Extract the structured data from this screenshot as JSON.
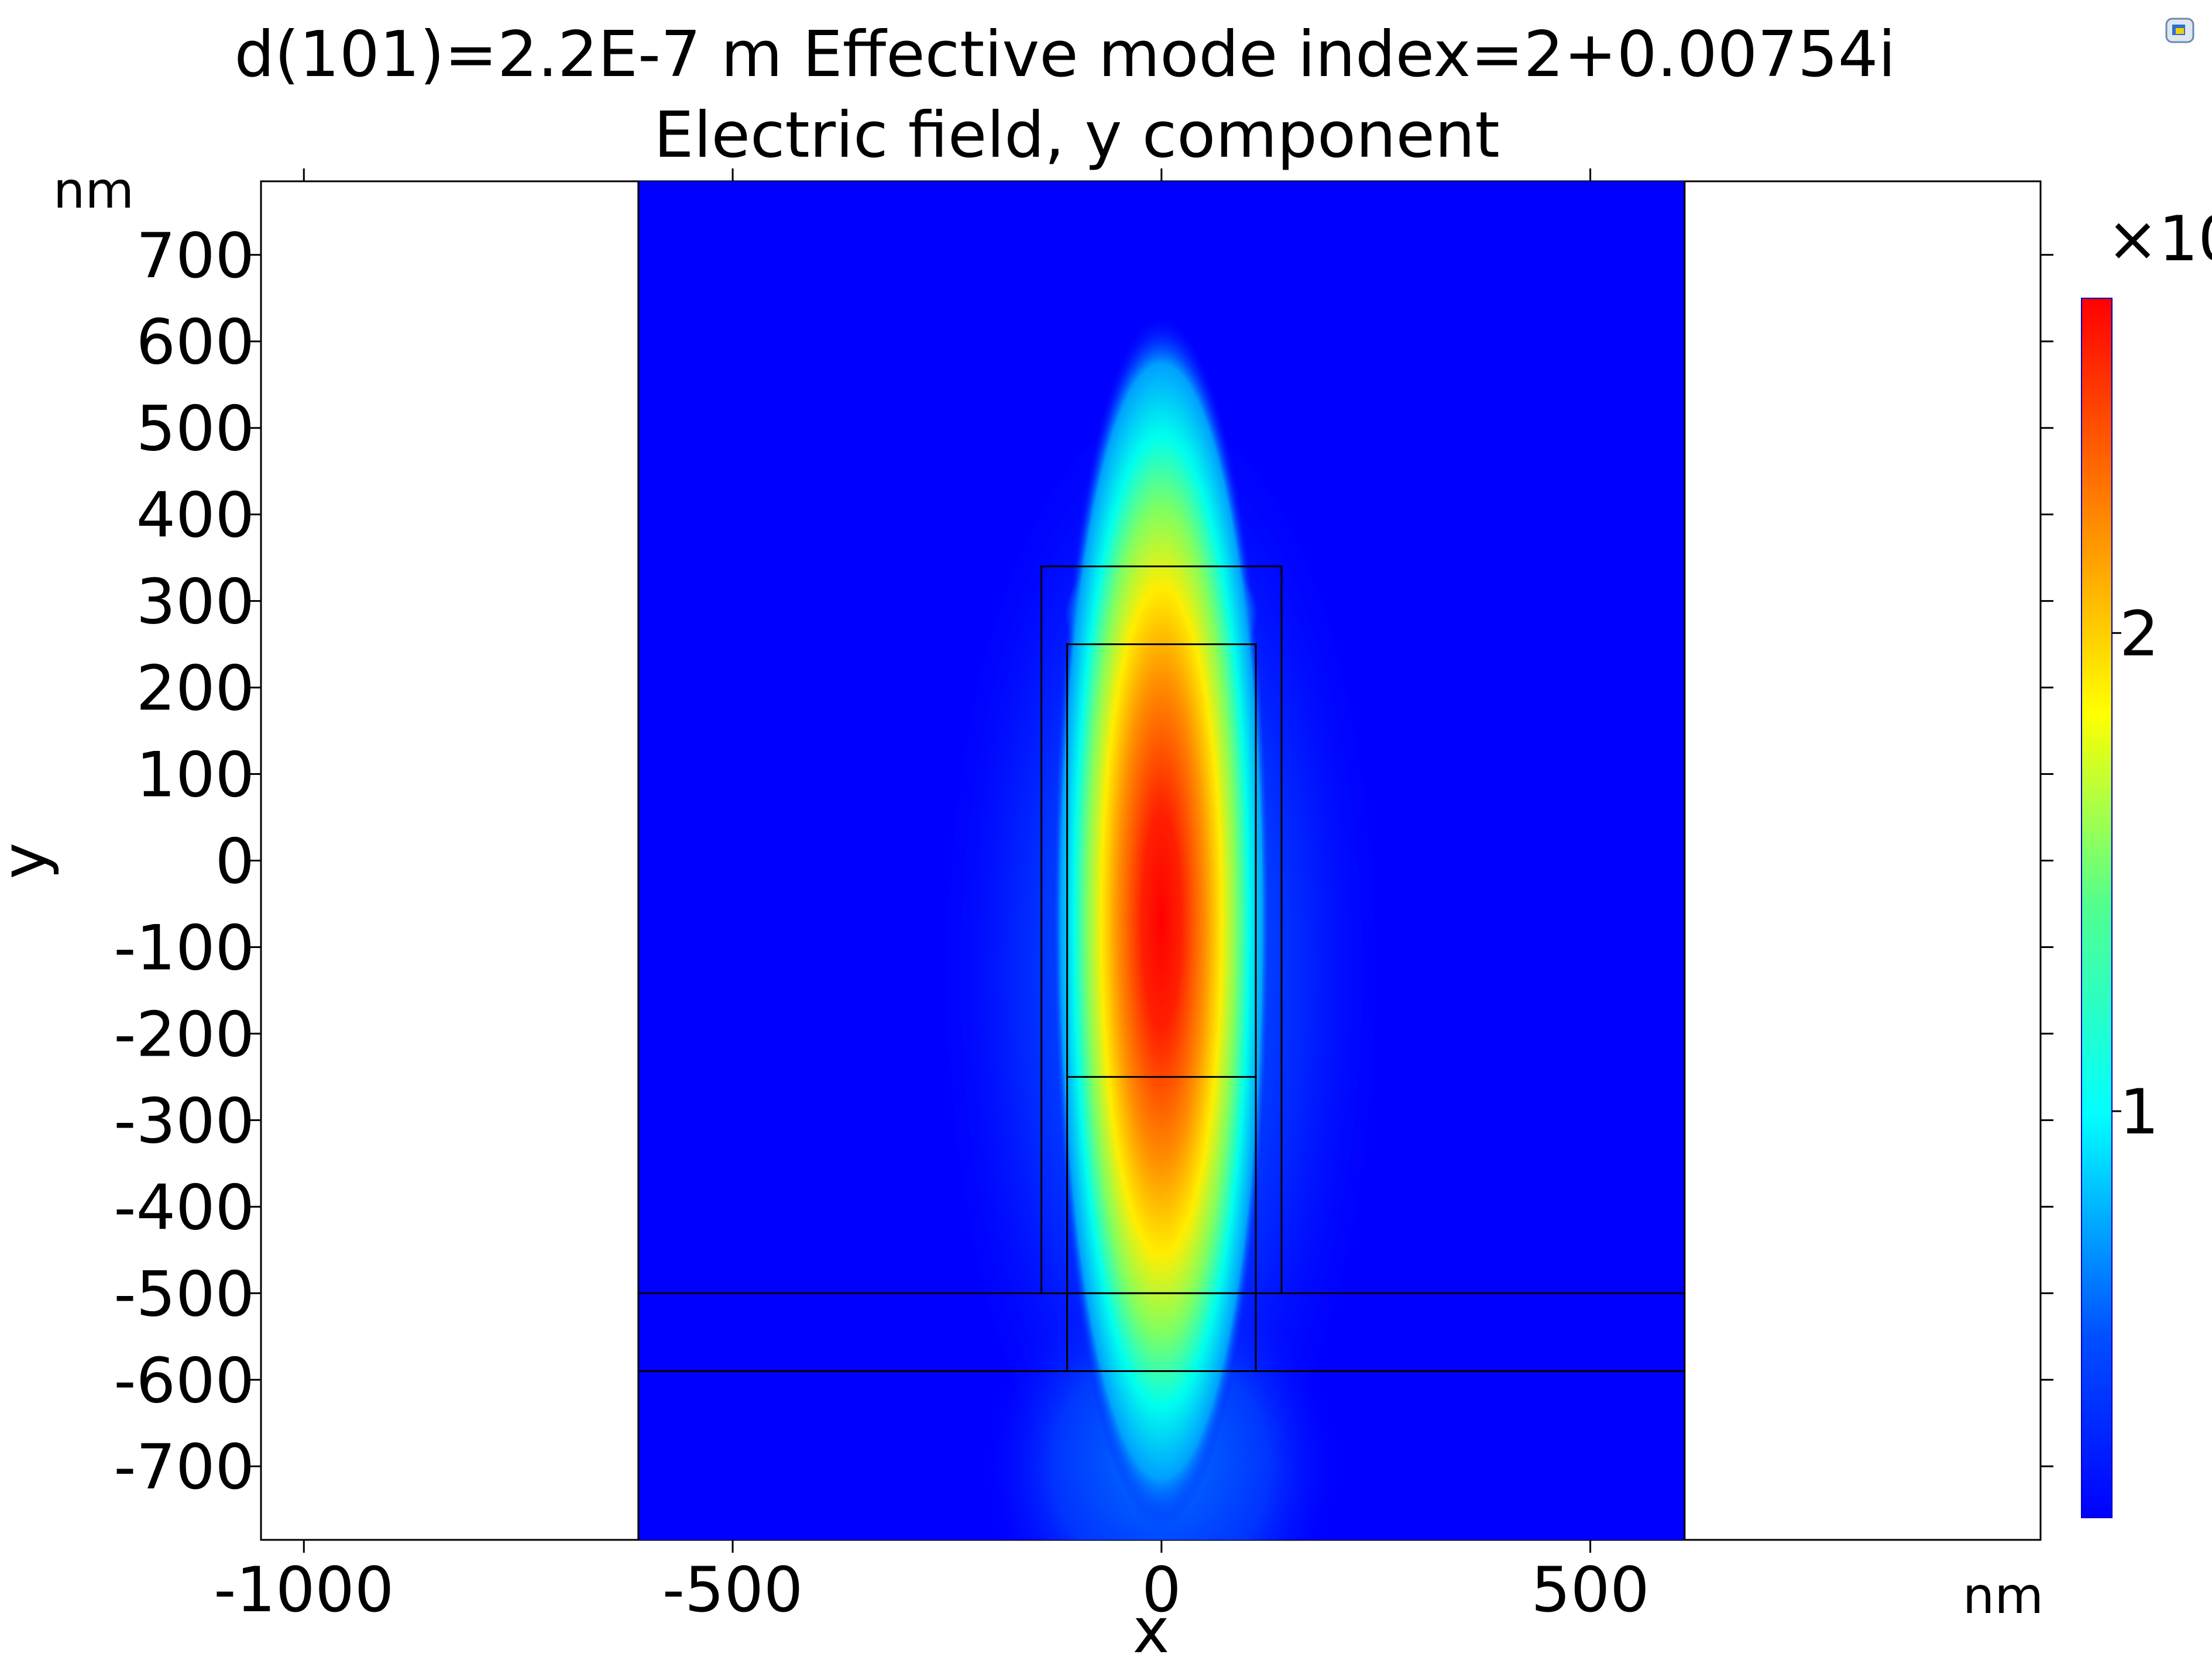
{
  "chart_data": {
    "type": "heatmap",
    "title": "d(101)=2.2E-7 m Effective mode index=2+0.00754i",
    "subtitle": "Electric field, y component",
    "xlabel": "x",
    "ylabel": "y",
    "x_unit": "nm",
    "y_unit": "nm",
    "xlim": [
      -1050,
      1025
    ],
    "ylim": [
      -785,
      785
    ],
    "x_ticks": [
      -1000,
      -500,
      0,
      500
    ],
    "x_tick_labels": [
      "-1000",
      "-500",
      "0",
      "500"
    ],
    "y_ticks": [
      700,
      600,
      500,
      400,
      300,
      200,
      100,
      0,
      -100,
      -200,
      -300,
      -400,
      -500,
      -600,
      -700
    ],
    "y_tick_labels": [
      "700",
      "600",
      "500",
      "400",
      "300",
      "200",
      "100",
      "0",
      "-100",
      "-200",
      "-300",
      "-400",
      "-500",
      "-600",
      "-700"
    ],
    "colorbar": {
      "colormap": "rainbow",
      "range": [
        0.15,
        2.7
      ],
      "ticks": [
        1,
        2
      ],
      "tick_labels": [
        "1",
        "2"
      ],
      "multiplier_label": "×10"
    },
    "domain": {
      "x": [
        -610,
        610
      ],
      "y": [
        -785,
        785
      ]
    },
    "geometry": {
      "outer_core": {
        "x": [
          -140,
          140
        ],
        "y": [
          -500,
          340
        ]
      },
      "inner_core": {
        "x": [
          -110,
          110
        ],
        "y": [
          -590,
          250
        ]
      },
      "inner_divider_y": -250,
      "slab": {
        "x": [
          -610,
          610
        ],
        "y": [
          -590,
          -500
        ]
      }
    },
    "field_peak": {
      "x": 0,
      "y": -70,
      "value": 2.7
    },
    "background_value": 0.15
  },
  "colors": {
    "low": "#0000ff",
    "high": "#ff0000",
    "edge": "#000000",
    "background": "#ffffff"
  },
  "toolbar": {
    "icon": "graphics-window-icon"
  }
}
